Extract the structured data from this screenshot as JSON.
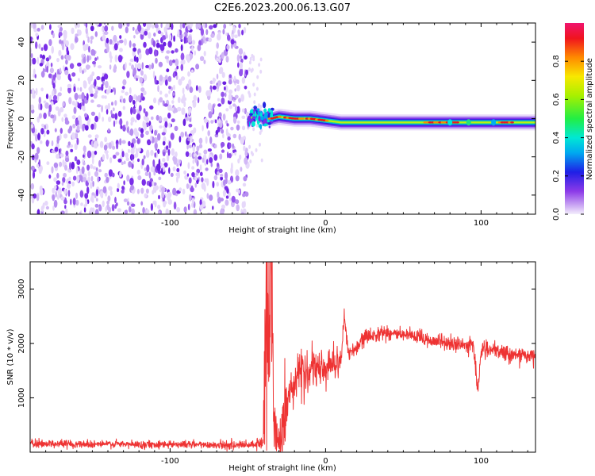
{
  "title": "C2E6.2023.200.06.13.G07",
  "chart_data": [
    {
      "type": "heatmap",
      "xlabel": "Height of straight line (km)",
      "ylabel": "Frequency (Hz)",
      "xlim": [
        -190,
        135
      ],
      "ylim": [
        -50,
        50
      ],
      "xticks": [
        -100,
        0,
        100
      ],
      "yticks": [
        -40,
        -20,
        0,
        20,
        40
      ],
      "noise_region_x": [
        -190,
        -50
      ],
      "signal_ridge": {
        "x": [
          -50,
          -45,
          -40,
          -35,
          -30,
          -20,
          -10,
          0,
          10,
          30,
          60,
          80,
          90,
          100,
          110,
          135
        ],
        "frequency": [
          -2,
          3,
          0,
          0,
          1,
          0,
          0,
          -1,
          -2,
          -2,
          -2,
          -2,
          -2,
          -2,
          -2,
          -2
        ]
      },
      "colorbar": {
        "label": "Normalized spectral amplitude",
        "range": [
          0,
          1
        ],
        "ticks": [
          0.0,
          0.2,
          0.4,
          0.6,
          0.8
        ]
      }
    },
    {
      "type": "line",
      "xlabel": "Height of straight line (km)",
      "ylabel": "SNR (10 * v/v)",
      "xlim": [
        -190,
        135
      ],
      "ylim": [
        0,
        3500
      ],
      "xticks": [
        -100,
        0,
        100
      ],
      "yticks": [
        1000,
        2000,
        3000
      ],
      "series": [
        {
          "color": "#ee3333",
          "x": [
            -190,
            -180,
            -160,
            -140,
            -120,
            -100,
            -80,
            -60,
            -45,
            -40,
            -38,
            -36,
            -35,
            -33,
            -30,
            -28,
            -25,
            -20,
            -17,
            -15,
            -10,
            -5,
            0,
            5,
            10,
            12,
            15,
            20,
            25,
            30,
            35,
            40,
            50,
            60,
            70,
            80,
            90,
            95,
            98,
            100,
            110,
            120,
            135
          ],
          "y": [
            150,
            160,
            150,
            150,
            140,
            150,
            140,
            130,
            130,
            150,
            3000,
            1500,
            2700,
            500,
            200,
            450,
            900,
            1300,
            1600,
            1400,
            1500,
            1500,
            1550,
            1650,
            1700,
            2500,
            1800,
            1900,
            2100,
            2150,
            2200,
            2200,
            2150,
            2100,
            2050,
            2000,
            1950,
            2000,
            1100,
            1900,
            1850,
            1800,
            1750
          ]
        }
      ]
    }
  ]
}
